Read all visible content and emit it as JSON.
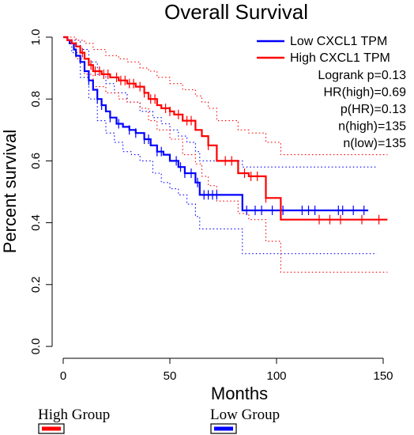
{
  "chart_data": {
    "type": "line",
    "title": "Overall Survival",
    "xlabel": "Months",
    "ylabel": "Percent survival",
    "xlim": [
      0,
      155
    ],
    "ylim": [
      0,
      1.0
    ],
    "x_ticks": [
      "0",
      "50",
      "100",
      "150"
    ],
    "x_tick_values": [
      0,
      50,
      100,
      150
    ],
    "y_ticks": [
      "0.0",
      "0.2",
      "0.4",
      "0.6",
      "0.8",
      "1.0"
    ],
    "y_tick_values": [
      0,
      0.2,
      0.4,
      0.6,
      0.8,
      1.0
    ],
    "grid": false,
    "legend_placement": "top-right",
    "legend": [
      "Low CXCL1 TPM",
      "High CXCL1 TPM"
    ],
    "stats": [
      "Logrank p=0.13",
      "HR(high)=0.69",
      "p(HR)=0.13",
      "n(high)=135",
      "n(low)=135"
    ],
    "series": [
      {
        "name": "Low CXCL1 TPM",
        "color": "#0000ff",
        "x": [
          0,
          2,
          3,
          5,
          6,
          8,
          10,
          12,
          14,
          16,
          18,
          20,
          22,
          25,
          28,
          31,
          34,
          38,
          41,
          44,
          47,
          50,
          54,
          57,
          62,
          64,
          84,
          143
        ],
        "y": [
          1.0,
          0.99,
          0.98,
          0.96,
          0.94,
          0.92,
          0.89,
          0.86,
          0.83,
          0.8,
          0.78,
          0.76,
          0.74,
          0.72,
          0.71,
          0.7,
          0.69,
          0.67,
          0.65,
          0.63,
          0.62,
          0.6,
          0.58,
          0.56,
          0.53,
          0.49,
          0.44,
          0.44
        ],
        "lower": [
          [
            0,
            1.0
          ],
          [
            4,
            0.95
          ],
          [
            8,
            0.87
          ],
          [
            12,
            0.8
          ],
          [
            16,
            0.73
          ],
          [
            20,
            0.69
          ],
          [
            24,
            0.66
          ],
          [
            28,
            0.63
          ],
          [
            32,
            0.62
          ],
          [
            36,
            0.6
          ],
          [
            42,
            0.56
          ],
          [
            46,
            0.53
          ],
          [
            50,
            0.51
          ],
          [
            54,
            0.49
          ],
          [
            58,
            0.46
          ],
          [
            62,
            0.42
          ],
          [
            64,
            0.38
          ],
          [
            84,
            0.3
          ],
          [
            147,
            0.3
          ]
        ],
        "upper": [
          [
            0,
            1.0
          ],
          [
            4,
            0.99
          ],
          [
            8,
            0.96
          ],
          [
            12,
            0.92
          ],
          [
            16,
            0.88
          ],
          [
            20,
            0.85
          ],
          [
            24,
            0.82
          ],
          [
            30,
            0.79
          ],
          [
            36,
            0.76
          ],
          [
            42,
            0.74
          ],
          [
            46,
            0.72
          ],
          [
            50,
            0.7
          ],
          [
            54,
            0.68
          ],
          [
            58,
            0.66
          ],
          [
            62,
            0.63
          ],
          [
            64,
            0.6
          ],
          [
            84,
            0.58
          ],
          [
            147,
            0.58
          ]
        ],
        "censor_x": [
          12,
          16,
          18,
          22,
          26,
          31,
          34,
          38,
          40,
          44,
          46,
          53,
          55,
          57,
          60,
          63,
          66,
          68,
          70,
          72,
          86,
          90,
          93,
          98,
          103,
          112,
          115,
          118,
          129,
          131,
          136,
          141
        ]
      },
      {
        "name": "High CXCL1 TPM",
        "color": "#ff0000",
        "x": [
          0,
          2,
          4,
          6,
          8,
          10,
          12,
          14,
          18,
          22,
          26,
          30,
          34,
          38,
          40,
          44,
          46,
          50,
          52,
          56,
          62,
          65,
          68,
          72,
          82,
          87,
          95,
          102,
          152
        ],
        "y": [
          1.0,
          0.99,
          0.98,
          0.97,
          0.95,
          0.93,
          0.91,
          0.89,
          0.88,
          0.87,
          0.86,
          0.85,
          0.84,
          0.82,
          0.8,
          0.78,
          0.77,
          0.76,
          0.75,
          0.73,
          0.7,
          0.68,
          0.65,
          0.6,
          0.56,
          0.55,
          0.48,
          0.41,
          0.41
        ],
        "lower": [
          [
            0,
            1.0
          ],
          [
            6,
            0.93
          ],
          [
            10,
            0.88
          ],
          [
            14,
            0.84
          ],
          [
            20,
            0.82
          ],
          [
            26,
            0.8
          ],
          [
            30,
            0.79
          ],
          [
            36,
            0.77
          ],
          [
            40,
            0.73
          ],
          [
            44,
            0.7
          ],
          [
            50,
            0.67
          ],
          [
            56,
            0.62
          ],
          [
            62,
            0.59
          ],
          [
            65,
            0.55
          ],
          [
            68,
            0.52
          ],
          [
            72,
            0.47
          ],
          [
            82,
            0.43
          ],
          [
            87,
            0.41
          ],
          [
            95,
            0.34
          ],
          [
            102,
            0.24
          ],
          [
            152,
            0.24
          ]
        ],
        "upper": [
          [
            0,
            1.0
          ],
          [
            6,
            0.99
          ],
          [
            10,
            0.98
          ],
          [
            14,
            0.96
          ],
          [
            20,
            0.94
          ],
          [
            26,
            0.93
          ],
          [
            30,
            0.92
          ],
          [
            36,
            0.9
          ],
          [
            40,
            0.89
          ],
          [
            44,
            0.87
          ],
          [
            50,
            0.85
          ],
          [
            56,
            0.83
          ],
          [
            62,
            0.81
          ],
          [
            65,
            0.79
          ],
          [
            68,
            0.77
          ],
          [
            72,
            0.73
          ],
          [
            82,
            0.7
          ],
          [
            87,
            0.69
          ],
          [
            95,
            0.66
          ],
          [
            102,
            0.62
          ],
          [
            152,
            0.62
          ]
        ],
        "censor_x": [
          9,
          13,
          15,
          17,
          19,
          21,
          25,
          27,
          29,
          31,
          33,
          36,
          38,
          41,
          43,
          48,
          50,
          54,
          58,
          60,
          68,
          76,
          79,
          85,
          88,
          91,
          95,
          120,
          125,
          130,
          140,
          148
        ]
      }
    ]
  },
  "footer": {
    "high_label": "High Group",
    "low_label": "Low Group",
    "high_color": "#ff0000",
    "low_color": "#0000ff"
  }
}
